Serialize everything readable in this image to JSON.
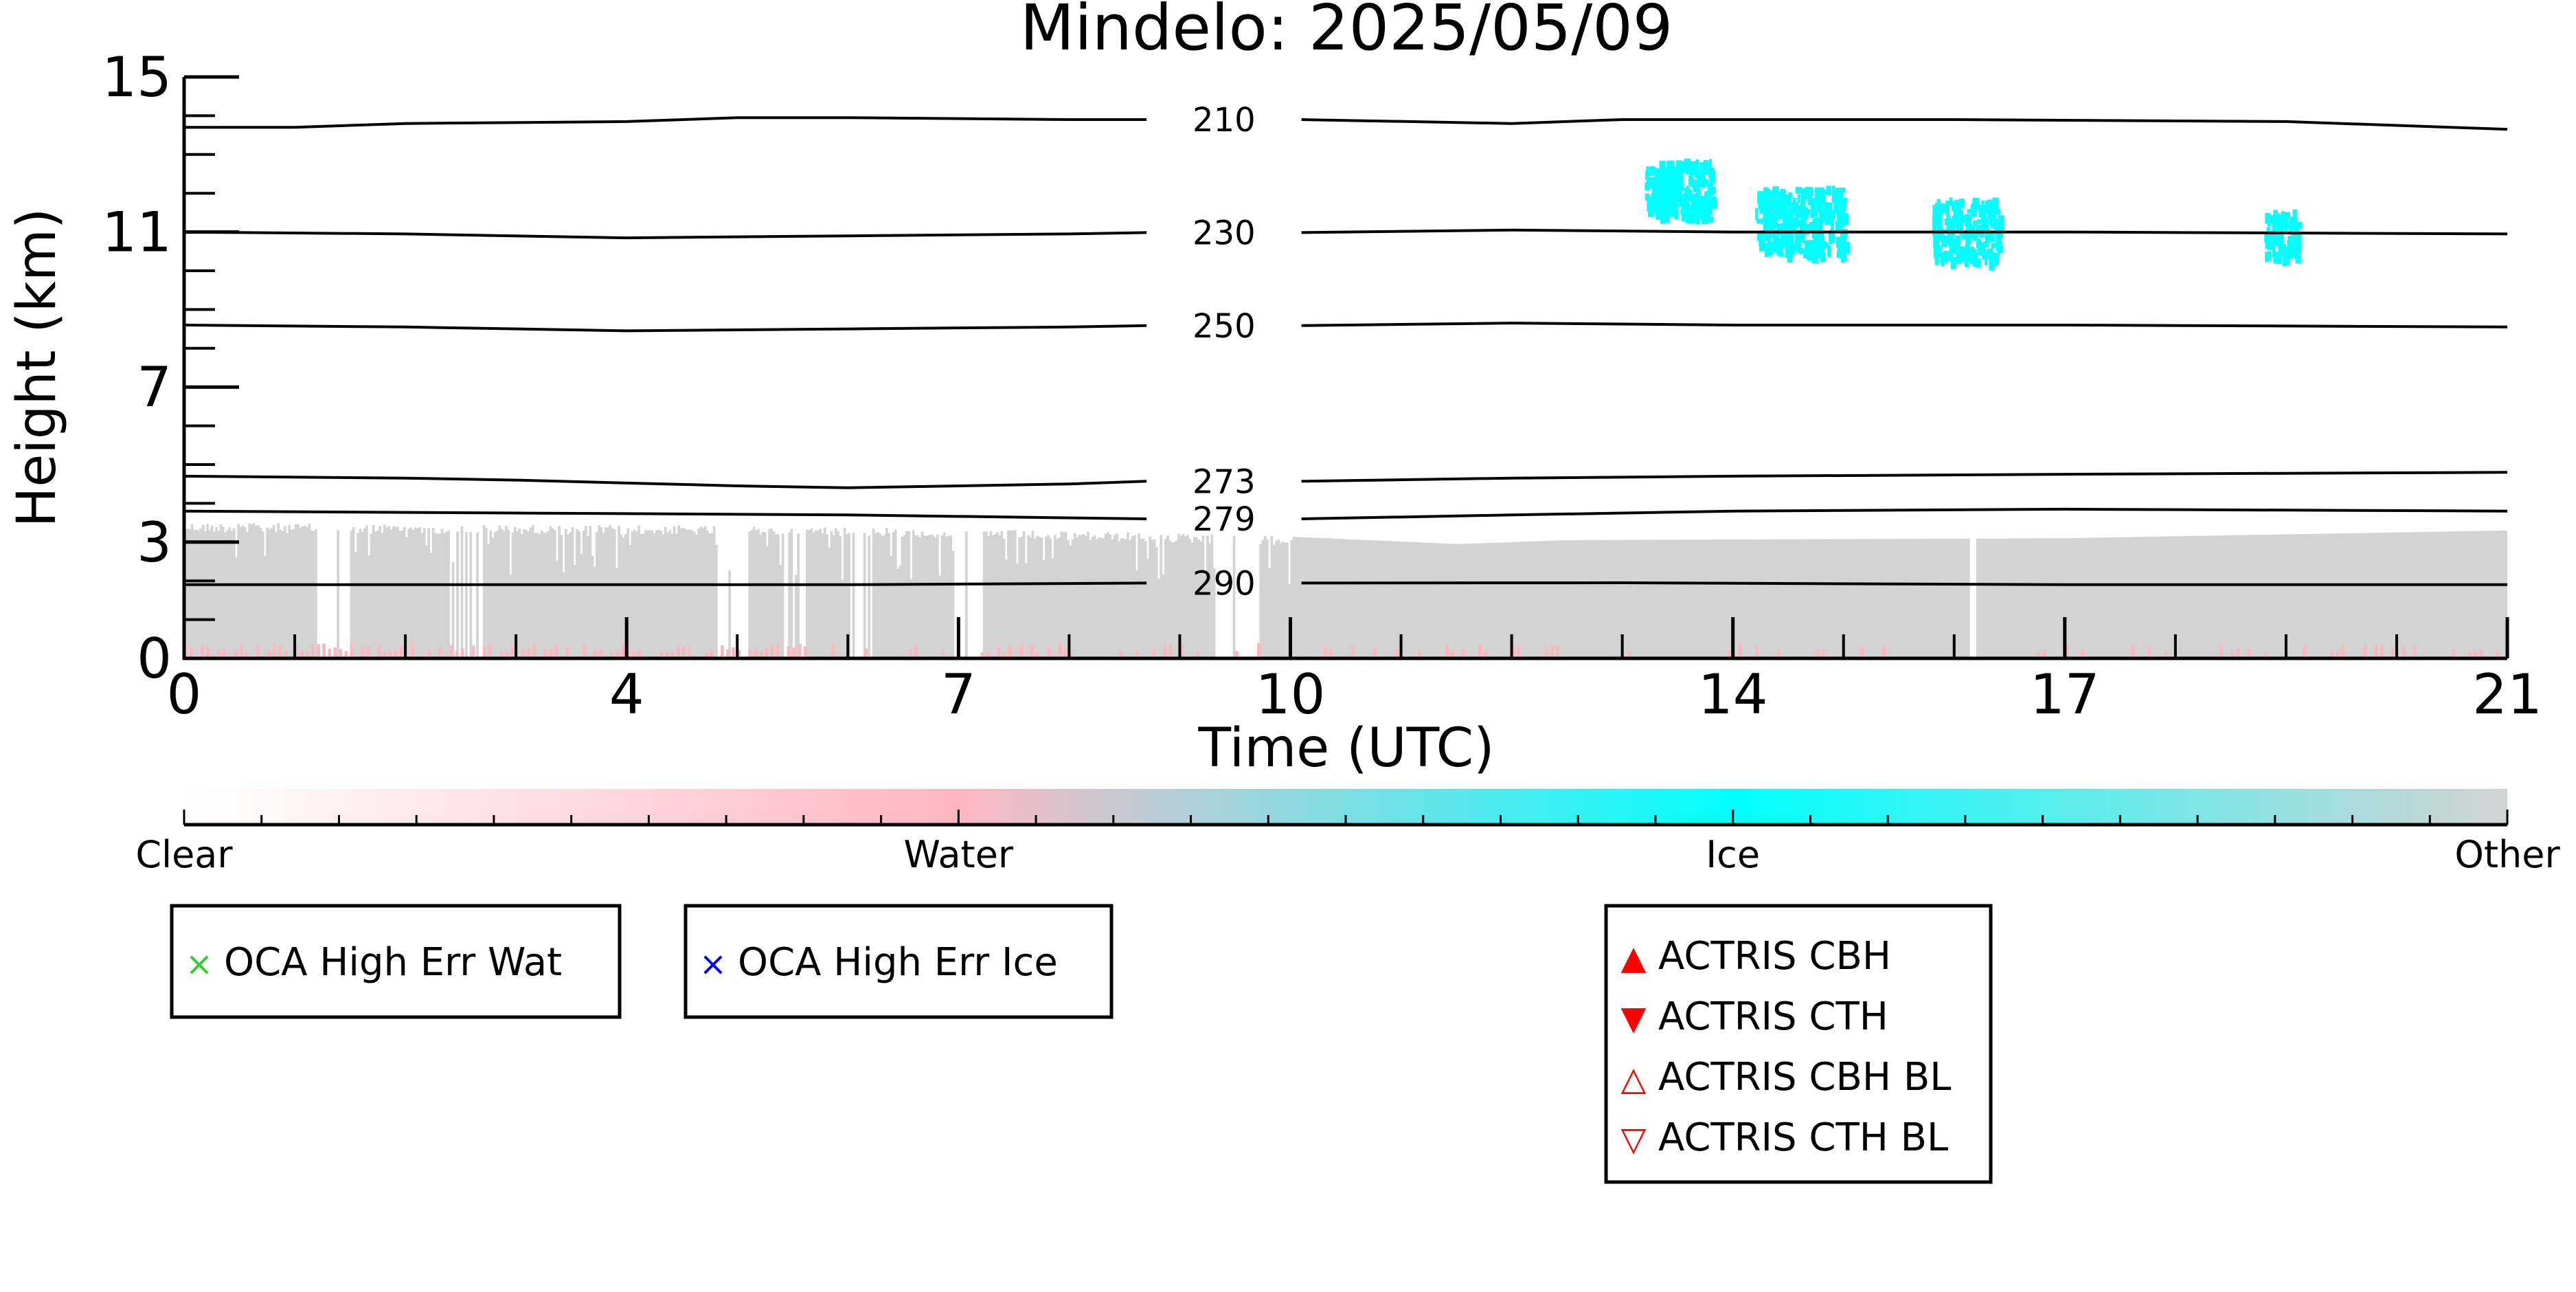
{
  "chart_data": {
    "type": "heatmap",
    "title": "Mindelo: 2025/05/09",
    "xlabel": "Time (UTC)",
    "ylabel": "Height (km)",
    "xlim": [
      0,
      21
    ],
    "ylim": [
      0,
      15
    ],
    "x_ticks": [
      0,
      4,
      7,
      10,
      14,
      17,
      21
    ],
    "y_ticks": [
      0,
      3,
      7,
      11,
      15
    ],
    "colorbar": {
      "categories": [
        "Clear",
        "Water",
        "Ice",
        "Other"
      ],
      "colors": [
        "#ffffff",
        "#ffb6c1",
        "#00ffff",
        "#d3d3d3"
      ]
    },
    "temperature_contours": [
      {
        "label": "210",
        "points": [
          [
            0,
            13.7
          ],
          [
            1,
            13.7
          ],
          [
            2,
            13.8
          ],
          [
            4,
            13.85
          ],
          [
            5,
            13.95
          ],
          [
            6,
            13.95
          ],
          [
            8,
            13.9
          ],
          [
            10,
            13.9
          ],
          [
            12,
            13.8
          ],
          [
            13,
            13.9
          ],
          [
            16,
            13.9
          ],
          [
            19,
            13.85
          ],
          [
            21,
            13.65
          ]
        ]
      },
      {
        "label": "230",
        "points": [
          [
            0,
            11.0
          ],
          [
            2,
            10.95
          ],
          [
            4,
            10.85
          ],
          [
            6,
            10.9
          ],
          [
            8,
            10.95
          ],
          [
            10,
            11.0
          ],
          [
            12,
            11.05
          ],
          [
            14,
            11.0
          ],
          [
            17,
            11.0
          ],
          [
            21,
            10.95
          ]
        ]
      },
      {
        "label": "250",
        "points": [
          [
            0,
            8.6
          ],
          [
            2,
            8.55
          ],
          [
            4,
            8.45
          ],
          [
            6,
            8.5
          ],
          [
            8,
            8.55
          ],
          [
            10,
            8.6
          ],
          [
            12,
            8.65
          ],
          [
            14,
            8.6
          ],
          [
            17,
            8.6
          ],
          [
            21,
            8.55
          ]
        ]
      },
      {
        "label": "273",
        "points": [
          [
            0,
            4.7
          ],
          [
            2,
            4.65
          ],
          [
            3,
            4.6
          ],
          [
            5,
            4.45
          ],
          [
            6,
            4.4
          ],
          [
            8,
            4.5
          ],
          [
            10,
            4.6
          ],
          [
            12,
            4.65
          ],
          [
            14,
            4.7
          ],
          [
            17,
            4.75
          ],
          [
            21,
            4.8
          ]
        ]
      },
      {
        "label": "279",
        "points": [
          [
            0,
            3.8
          ],
          [
            3,
            3.75
          ],
          [
            6,
            3.7
          ],
          [
            9,
            3.6
          ],
          [
            10,
            3.6
          ],
          [
            12,
            3.7
          ],
          [
            14,
            3.8
          ],
          [
            17,
            3.85
          ],
          [
            21,
            3.8
          ]
        ]
      },
      {
        "label": "290",
        "points": [
          [
            0,
            1.9
          ],
          [
            3,
            1.9
          ],
          [
            6,
            1.9
          ],
          [
            10,
            1.95
          ],
          [
            13,
            1.95
          ],
          [
            17,
            1.9
          ],
          [
            21,
            1.9
          ]
        ]
      }
    ],
    "ice_clouds": [
      {
        "t0": 13.2,
        "t1": 13.5,
        "h0": 11.7,
        "h1": 12.7
      },
      {
        "t0": 13.3,
        "t1": 13.8,
        "h0": 11.4,
        "h1": 12.9
      },
      {
        "t0": 14.2,
        "t1": 15.0,
        "h0": 10.5,
        "h1": 12.2
      },
      {
        "t0": 15.8,
        "t1": 16.4,
        "h0": 10.3,
        "h1": 11.9
      },
      {
        "t0": 18.8,
        "t1": 19.1,
        "h0": 10.4,
        "h1": 11.6
      }
    ],
    "other_layer_top_km": [
      {
        "t": 0,
        "h": 3.5
      },
      {
        "t": 6,
        "h": 3.4
      },
      {
        "t": 9.5,
        "h": 3.2
      },
      {
        "t": 11.5,
        "h": 2.95
      },
      {
        "t": 12.5,
        "h": 3.05
      },
      {
        "t": 17,
        "h": 3.1
      },
      {
        "t": 21,
        "h": 3.3
      }
    ],
    "gap_segments_hours": [
      [
        1.2,
        1.5
      ],
      [
        2.4,
        2.7
      ],
      [
        4.8,
        5.1
      ],
      [
        5.4,
        5.6
      ],
      [
        6.0,
        6.2
      ],
      [
        6.9,
        7.2
      ],
      [
        9.3,
        9.7
      ],
      [
        16.1,
        16.2
      ]
    ],
    "water_near_surface_hours": [
      0,
      5.6
    ]
  },
  "legend_groups": [
    {
      "items": [
        {
          "symbol": "×",
          "color": "#33cc33",
          "label": "OCA High Err Wat"
        }
      ]
    },
    {
      "items": [
        {
          "symbol": "×",
          "color": "#0000ee",
          "label": "OCA High Err Ice"
        }
      ]
    },
    {
      "items": [
        {
          "symbol": "▲",
          "color": "#ff0000",
          "label": "ACTRIS CBH"
        },
        {
          "symbol": "▼",
          "color": "#ff0000",
          "label": "ACTRIS CTH"
        },
        {
          "symbol": "△",
          "color": "#ff0000",
          "label": "ACTRIS CBH BL"
        },
        {
          "symbol": "▽",
          "color": "#ff0000",
          "label": "ACTRIS CTH BL"
        }
      ]
    }
  ]
}
